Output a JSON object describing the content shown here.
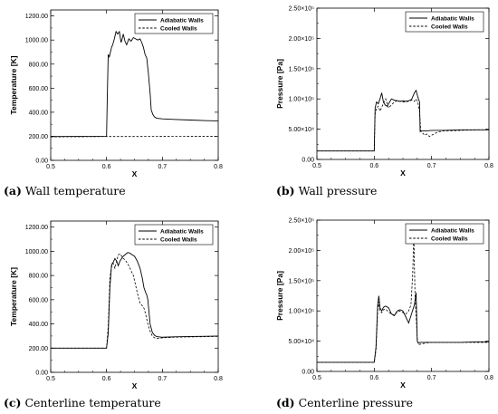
{
  "panels": [
    {
      "id": "a",
      "caption_letter": "(a)",
      "caption_text": "Wall temperature",
      "chart_data": {
        "type": "line",
        "xlabel": "X",
        "ylabel": "Temperature [K]",
        "xlim": [
          0.5,
          0.8
        ],
        "ylim": [
          0,
          1250
        ],
        "xticks": [
          0.5,
          0.6,
          0.7,
          0.8
        ],
        "xtick_labels": [
          "0.5",
          "0.6",
          "0.7",
          "0.8"
        ],
        "yticks": [
          0,
          200,
          400,
          600,
          800,
          1000,
          1200
        ],
        "ytick_labels": [
          "0.00",
          "200.00",
          "400.00",
          "600.00",
          "800.00",
          "1000.00",
          "1200.00"
        ],
        "legend_position": "top-right",
        "series": [
          {
            "name": "Adiabatic Walls",
            "style": "solid",
            "x": [
              0.5,
              0.55,
              0.6,
              0.6015,
              0.603,
              0.605,
              0.607,
              0.609,
              0.611,
              0.614,
              0.617,
              0.62,
              0.623,
              0.626,
              0.628,
              0.63,
              0.633,
              0.636,
              0.64,
              0.644,
              0.648,
              0.652,
              0.656,
              0.66,
              0.663,
              0.666,
              0.669,
              0.672,
              0.675,
              0.678,
              0.68,
              0.683,
              0.686,
              0.69,
              0.7,
              0.72,
              0.75,
              0.78,
              0.8
            ],
            "y": [
              198,
              199,
              200,
              560,
              880,
              860,
              900,
              940,
              960,
              1010,
              1070,
              1050,
              1070,
              980,
              1010,
              1050,
              990,
              960,
              1010,
              990,
              1020,
              1010,
              1000,
              1010,
              980,
              940,
              880,
              850,
              720,
              560,
              420,
              380,
              360,
              350,
              345,
              340,
              335,
              330,
              328
            ]
          },
          {
            "name": "Cooled Walls",
            "style": "dashed",
            "x": [
              0.5,
              0.55,
              0.6,
              0.65,
              0.7,
              0.75,
              0.8
            ],
            "y": [
              195,
              196,
              198,
              198,
              199,
              200,
              200
            ]
          }
        ]
      }
    },
    {
      "id": "b",
      "caption_letter": "(b)",
      "caption_text": "Wall pressure",
      "chart_data": {
        "type": "line",
        "xlabel": "X",
        "ylabel": "Pressure [Pa]",
        "xlim": [
          0.5,
          0.8
        ],
        "ylim": [
          0,
          250000
        ],
        "xticks": [
          0.5,
          0.6,
          0.7,
          0.8
        ],
        "xtick_labels": [
          "0.5",
          "0.6",
          "0.7",
          "0.8"
        ],
        "yticks": [
          0,
          50000,
          100000,
          150000,
          200000,
          250000
        ],
        "ytick_labels": [
          "0.00",
          "5.00×10⁴",
          "1.00×10⁵",
          "1.50×10⁵",
          "2.00×10⁵",
          "2.50×10⁵"
        ],
        "legend_position": "top-right",
        "series": [
          {
            "name": "Adiabatic Walls",
            "style": "solid",
            "x": [
              0.5,
              0.55,
              0.6,
              0.6015,
              0.604,
              0.607,
              0.61,
              0.613,
              0.616,
              0.619,
              0.622,
              0.625,
              0.63,
              0.635,
              0.64,
              0.645,
              0.65,
              0.655,
              0.66,
              0.665,
              0.67,
              0.673,
              0.676,
              0.679,
              0.68,
              0.683,
              0.69,
              0.7,
              0.72,
              0.75,
              0.78,
              0.8
            ],
            "y": [
              14000,
              14000,
              14000,
              85000,
              95000,
              92000,
              100000,
              110000,
              95000,
              90000,
              88000,
              92000,
              100000,
              98000,
              97000,
              96000,
              97000,
              96000,
              97000,
              99000,
              110000,
              114000,
              103000,
              95000,
              46000,
              47000,
              47000,
              48000,
              48000,
              49000,
              49000,
              49000
            ]
          },
          {
            "name": "Cooled Walls",
            "style": "dashed",
            "x": [
              0.5,
              0.55,
              0.6,
              0.6015,
              0.604,
              0.607,
              0.61,
              0.613,
              0.616,
              0.62,
              0.625,
              0.63,
              0.635,
              0.64,
              0.65,
              0.66,
              0.665,
              0.67,
              0.673,
              0.676,
              0.679,
              0.681,
              0.684,
              0.688,
              0.692,
              0.696,
              0.7,
              0.71,
              0.72,
              0.75,
              0.78,
              0.8
            ],
            "y": [
              14000,
              14000,
              14000,
              75000,
              85000,
              88000,
              80000,
              86000,
              93000,
              100000,
              85000,
              90000,
              95000,
              97000,
              95000,
              96000,
              98000,
              96000,
              100000,
              94000,
              80000,
              48000,
              44000,
              40000,
              42000,
              38000,
              40000,
              45000,
              47000,
              48000,
              49000,
              49000
            ]
          }
        ]
      }
    },
    {
      "id": "c",
      "caption_letter": "(c)",
      "caption_text": "Centerline temperature",
      "chart_data": {
        "type": "line",
        "xlabel": "X",
        "ylabel": "Temperature [K]",
        "xlim": [
          0.5,
          0.8
        ],
        "ylim": [
          0,
          1250
        ],
        "xticks": [
          0.5,
          0.6,
          0.7,
          0.8
        ],
        "xtick_labels": [
          "0.5",
          "0.6",
          "0.7",
          "0.8"
        ],
        "yticks": [
          0,
          200,
          400,
          600,
          800,
          1000,
          1200
        ],
        "ytick_labels": [
          "0.00",
          "200.00",
          "400.00",
          "600.00",
          "800.00",
          "1000.00",
          "1200.00"
        ],
        "legend_position": "top-right",
        "series": [
          {
            "name": "Adiabatic Walls",
            "style": "solid",
            "x": [
              0.5,
              0.55,
              0.6,
              0.603,
              0.606,
              0.609,
              0.612,
              0.615,
              0.618,
              0.621,
              0.624,
              0.627,
              0.63,
              0.634,
              0.638,
              0.642,
              0.646,
              0.65,
              0.655,
              0.66,
              0.664,
              0.667,
              0.67,
              0.672,
              0.674,
              0.676,
              0.678,
              0.682,
              0.686,
              0.69,
              0.7,
              0.72,
              0.75,
              0.78,
              0.8
            ],
            "y": [
              200,
              200,
              200,
              320,
              700,
              890,
              910,
              940,
              920,
              880,
              920,
              940,
              960,
              975,
              990,
              985,
              970,
              960,
              920,
              860,
              780,
              700,
              660,
              640,
              600,
              500,
              400,
              330,
              305,
              295,
              290,
              293,
              296,
              298,
              300
            ]
          },
          {
            "name": "Cooled Walls",
            "style": "dashed",
            "x": [
              0.5,
              0.55,
              0.6,
              0.603,
              0.606,
              0.609,
              0.612,
              0.615,
              0.618,
              0.621,
              0.624,
              0.627,
              0.63,
              0.633,
              0.636,
              0.64,
              0.644,
              0.648,
              0.652,
              0.656,
              0.66,
              0.664,
              0.667,
              0.67,
              0.674,
              0.678,
              0.682,
              0.686,
              0.69,
              0.7,
              0.72,
              0.75,
              0.78,
              0.8
            ],
            "y": [
              200,
              200,
              200,
              380,
              780,
              870,
              900,
              860,
              920,
              970,
              980,
              960,
              940,
              930,
              910,
              880,
              840,
              800,
              720,
              640,
              570,
              550,
              530,
              480,
              400,
              340,
              300,
              285,
              280,
              285,
              290,
              293,
              295,
              297
            ]
          }
        ]
      }
    },
    {
      "id": "d",
      "caption_letter": "(d)",
      "caption_text": "Centerline pressure",
      "chart_data": {
        "type": "line",
        "xlabel": "X",
        "ylabel": "Pressure [Pa]",
        "xlim": [
          0.5,
          0.8
        ],
        "ylim": [
          0,
          250000
        ],
        "xticks": [
          0.5,
          0.6,
          0.7,
          0.8
        ],
        "xtick_labels": [
          "0.5",
          "0.6",
          "0.7",
          "0.8"
        ],
        "yticks": [
          0,
          50000,
          100000,
          150000,
          200000,
          250000
        ],
        "ytick_labels": [
          "0.00",
          "5.00×10⁴",
          "1.00×10⁵",
          "1.50×10⁵",
          "2.00×10⁵",
          "2.50×10⁵"
        ],
        "legend_position": "top-right",
        "series": [
          {
            "name": "Adiabatic Walls",
            "style": "solid",
            "x": [
              0.5,
              0.55,
              0.6,
              0.603,
              0.606,
              0.608,
              0.61,
              0.613,
              0.616,
              0.62,
              0.625,
              0.63,
              0.635,
              0.64,
              0.645,
              0.65,
              0.655,
              0.66,
              0.665,
              0.67,
              0.673,
              0.675,
              0.677,
              0.68,
              0.69,
              0.7,
              0.72,
              0.75,
              0.78,
              0.8
            ],
            "y": [
              15000,
              15000,
              15000,
              40000,
              110000,
              125000,
              105000,
              100000,
              106000,
              108000,
              105000,
              95000,
              92000,
              100000,
              102000,
              100000,
              90000,
              80000,
              95000,
              110000,
              130000,
              50000,
              47000,
              48000,
              48000,
              48000,
              48000,
              48000,
              49000,
              49000
            ]
          },
          {
            "name": "Cooled Walls",
            "style": "dashed",
            "x": [
              0.5,
              0.55,
              0.6,
              0.603,
              0.606,
              0.608,
              0.61,
              0.613,
              0.616,
              0.62,
              0.625,
              0.63,
              0.635,
              0.64,
              0.645,
              0.65,
              0.655,
              0.66,
              0.664,
              0.667,
              0.669,
              0.671,
              0.673,
              0.675,
              0.677,
              0.68,
              0.69,
              0.7,
              0.72,
              0.75,
              0.78,
              0.8
            ],
            "y": [
              15000,
              15000,
              15000,
              35000,
              100000,
              115000,
              100000,
              97000,
              102000,
              103000,
              98000,
              95000,
              93000,
              98000,
              100000,
              97000,
              95000,
              100000,
              110000,
              160000,
              225000,
              130000,
              90000,
              55000,
              44000,
              45000,
              47000,
              48000,
              48000,
              48000,
              48000,
              48000
            ]
          }
        ]
      }
    }
  ]
}
